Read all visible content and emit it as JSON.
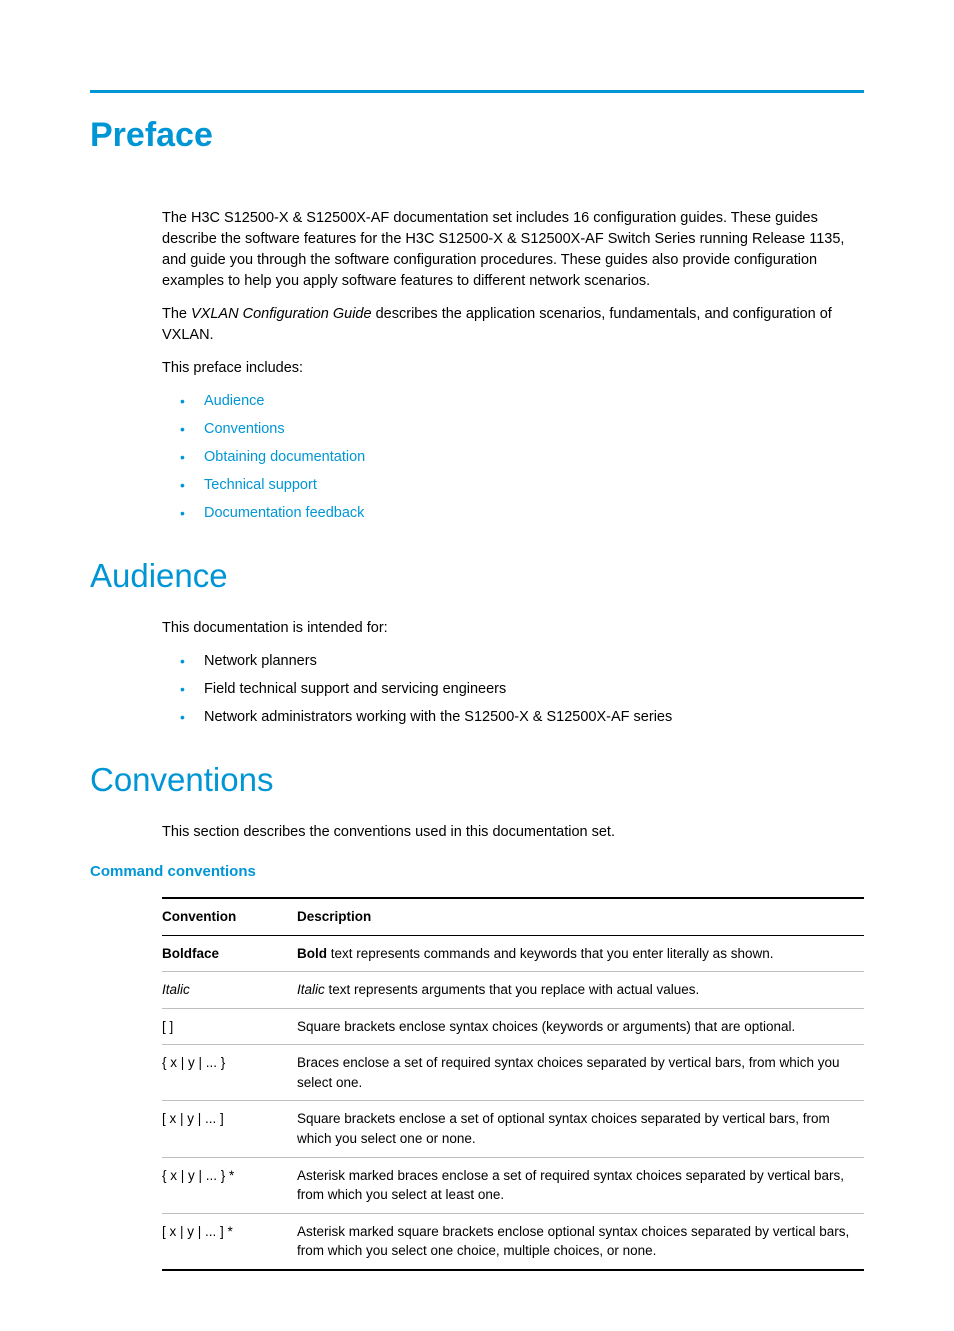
{
  "colors": {
    "accent": "#0096d6",
    "text": "#000000",
    "background": "#ffffff",
    "table_border_strong": "#000000",
    "table_border_light": "#bfbfbf"
  },
  "title": "Preface",
  "intro_p1_a": "The H3C S12500-X & S12500X-AF documentation set includes 16 configuration guides. These guides describe the software features for the H3C S12500-X & S12500X-AF Switch Series running Release 1135, and guide you through the software configuration procedures. These guides also provide configuration examples to help you apply software features to different network scenarios.",
  "intro_p2_prefix": "The ",
  "intro_p2_italic": "VXLAN Configuration Guide",
  "intro_p2_suffix": " describes the application scenarios, fundamentals, and configuration of VXLAN.",
  "intro_p3": "This preface includes:",
  "toc_links": [
    "Audience",
    "Conventions",
    "Obtaining documentation",
    "Technical support",
    "Documentation feedback"
  ],
  "audience": {
    "heading": "Audience",
    "intro": "This documentation is intended for:",
    "items": [
      "Network planners",
      "Field technical support and servicing engineers",
      "Network administrators working with the S12500-X & S12500X-AF series"
    ]
  },
  "conventions": {
    "heading": "Conventions",
    "intro": "This section describes the conventions used in this documentation set.",
    "command_heading": "Command conventions",
    "table": {
      "columns": [
        "Convention",
        "Description"
      ],
      "rows": [
        {
          "conv_html": "<span class=\"bold\">Boldface</span>",
          "desc_html": "<span class=\"bold\">Bold</span> text represents commands and keywords that you enter literally as shown."
        },
        {
          "conv_html": "<span class=\"italic\">Italic</span>",
          "desc_html": "<span class=\"italic\">Italic</span> text represents arguments that you replace with actual values."
        },
        {
          "conv_html": "[ ]",
          "desc_html": "Square brackets enclose syntax choices (keywords or arguments) that are optional."
        },
        {
          "conv_html": "{ x | y | ... }",
          "desc_html": "Braces enclose a set of required syntax choices separated by vertical bars, from which you select one."
        },
        {
          "conv_html": "[ x | y | ... ]",
          "desc_html": "Square brackets enclose a set of optional syntax choices separated by vertical bars, from which you select one or none."
        },
        {
          "conv_html": "{ x | y | ... } *",
          "desc_html": "Asterisk marked braces enclose a set of required syntax choices separated by vertical bars, from which you select at least one."
        },
        {
          "conv_html": "[ x | y | ... ] *",
          "desc_html": "Asterisk marked square brackets enclose optional syntax choices separated by vertical bars, from which you select one choice, multiple choices, or none."
        }
      ]
    }
  }
}
